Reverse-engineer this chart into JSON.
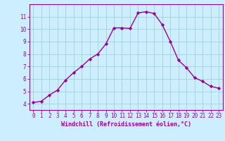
{
  "x": [
    0,
    1,
    2,
    3,
    4,
    5,
    6,
    7,
    8,
    9,
    10,
    11,
    12,
    13,
    14,
    15,
    16,
    17,
    18,
    19,
    20,
    21,
    22,
    23
  ],
  "y": [
    4.1,
    4.2,
    4.7,
    5.1,
    5.9,
    6.5,
    7.0,
    7.6,
    8.0,
    8.8,
    10.1,
    10.1,
    10.05,
    11.3,
    11.4,
    11.25,
    10.35,
    9.0,
    7.5,
    6.9,
    6.1,
    5.8,
    5.4,
    5.25
  ],
  "line_color": "#990099",
  "marker": "D",
  "marker_size": 2.2,
  "bg_color": "#cceeff",
  "grid_color": "#99cccc",
  "xlabel": "Windchill (Refroidissement éolien,°C)",
  "xlabel_color": "#990099",
  "tick_color": "#990099",
  "axis_color": "#990099",
  "xlim": [
    -0.5,
    23.5
  ],
  "ylim": [
    3.5,
    12.0
  ],
  "yticks": [
    4,
    5,
    6,
    7,
    8,
    9,
    10,
    11
  ],
  "xticks": [
    0,
    1,
    2,
    3,
    4,
    5,
    6,
    7,
    8,
    9,
    10,
    11,
    12,
    13,
    14,
    15,
    16,
    17,
    18,
    19,
    20,
    21,
    22,
    23
  ],
  "tick_fontsize": 5.5,
  "xlabel_fontsize": 6.0,
  "linewidth": 1.0
}
